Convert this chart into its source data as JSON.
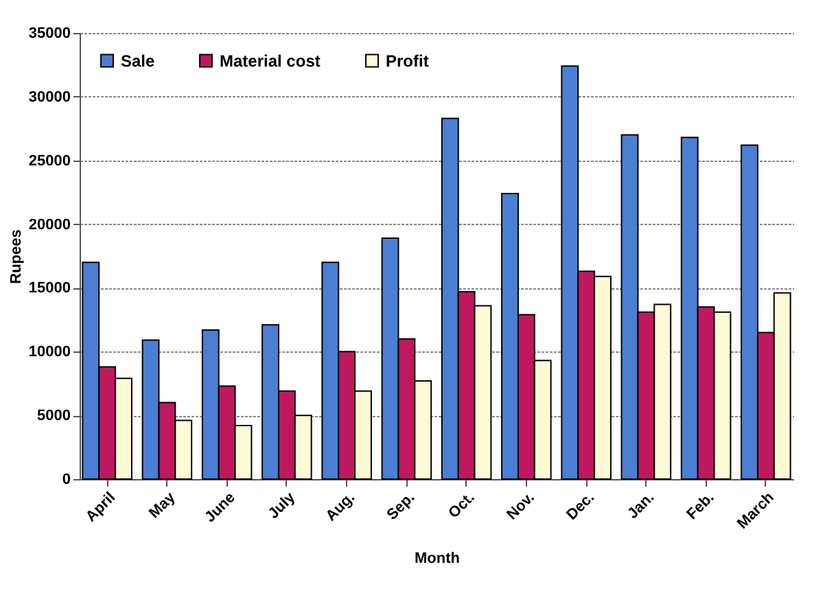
{
  "chart_data": {
    "type": "bar",
    "xlabel": "Month",
    "ylabel": "Rupees",
    "categories": [
      "April",
      "May",
      "June",
      "July",
      "Aug.",
      "Sep.",
      "Oct.",
      "Nov.",
      "Dec.",
      "Jan.",
      "Feb.",
      "March"
    ],
    "series": [
      {
        "name": "Sale",
        "color": "#4a7fd4",
        "values": [
          17000,
          10900,
          11700,
          12100,
          17000,
          18900,
          28300,
          22400,
          32400,
          27000,
          26800,
          26200
        ]
      },
      {
        "name": "Material cost",
        "color": "#c0185f",
        "values": [
          8800,
          6000,
          7300,
          6900,
          10000,
          11000,
          14700,
          12900,
          16300,
          13100,
          13500,
          11500
        ]
      },
      {
        "name": "Profit",
        "color": "#fdfbd6",
        "values": [
          7900,
          4600,
          4200,
          5000,
          6900,
          7700,
          13600,
          9300,
          15900,
          13700,
          13100,
          14600
        ]
      }
    ],
    "ylim": [
      0,
      35000
    ],
    "yticks": [
      0,
      5000,
      10000,
      15000,
      20000,
      25000,
      30000,
      35000
    ],
    "grid": "y",
    "legend": "top left"
  }
}
